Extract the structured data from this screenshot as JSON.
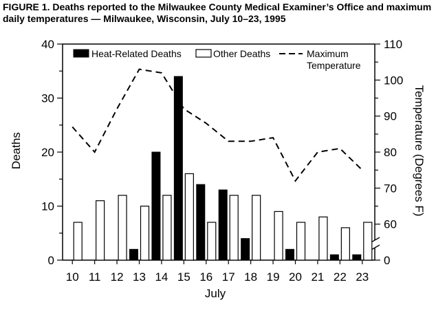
{
  "figure": {
    "title": "FIGURE 1. Deaths reported to the Milwaukee County Medical Examiner’s Office and maximum daily temperatures — Milwaukee, Wisconsin, July 10–23, 1995"
  },
  "chart_data": {
    "type": "bar",
    "title": "FIGURE 1. Deaths reported to the Milwaukee County Medical Examiner’s Office and maximum daily temperatures — Milwaukee, Wisconsin, July 10–23, 1995",
    "xlabel": "July",
    "ylabel": "Deaths",
    "y2label": "Temperature (Degrees F)",
    "categories": [
      "10",
      "11",
      "12",
      "13",
      "14",
      "15",
      "16",
      "17",
      "18",
      "19",
      "20",
      "21",
      "22",
      "23"
    ],
    "ylim": [
      0,
      40
    ],
    "yticks": [
      0,
      10,
      20,
      30,
      40
    ],
    "y2ticks": [
      0,
      60,
      70,
      80,
      90,
      100,
      110
    ],
    "y2_axis_break": true,
    "grid": false,
    "legend_position": "top",
    "series": [
      {
        "name": "Heat-Related Deaths",
        "kind": "bar",
        "color": "#000000",
        "values": [
          0,
          0,
          0,
          2,
          20,
          34,
          14,
          13,
          4,
          0,
          2,
          0,
          1,
          1
        ]
      },
      {
        "name": "Other Deaths",
        "kind": "bar",
        "color": "#ffffff",
        "values": [
          7,
          11,
          12,
          10,
          12,
          16,
          7,
          12,
          12,
          9,
          7,
          8,
          6,
          7
        ]
      },
      {
        "name": "Maximum Temperature",
        "kind": "line",
        "style": "dashed",
        "axis": "right",
        "color": "#000000",
        "values": [
          87,
          80,
          92,
          103,
          102,
          92,
          88,
          83,
          83,
          84,
          72,
          80,
          81,
          75
        ]
      }
    ],
    "legend": [
      {
        "label": "Heat-Related Deaths",
        "symbol": "filled-box"
      },
      {
        "label": "Other Deaths",
        "symbol": "open-box"
      },
      {
        "label_lines": [
          "Maximum",
          "Temperature"
        ],
        "symbol": "dashed-line"
      }
    ]
  }
}
